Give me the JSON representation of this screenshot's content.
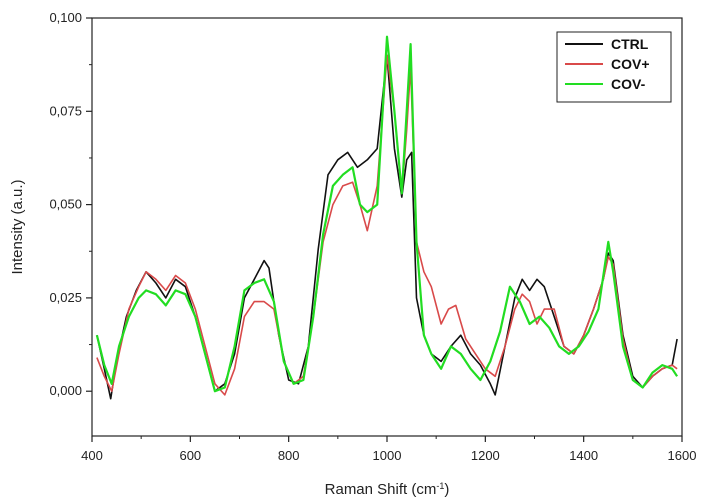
{
  "chart_data": {
    "type": "line",
    "title": "",
    "xlabel": "Raman Shift (cm",
    "xlabel_sup": "-1",
    "xlabel_close": ")",
    "ylabel": "Intensity (a.u.)",
    "xlim": [
      400,
      1600
    ],
    "ylim": [
      -0.012,
      0.1
    ],
    "xticks": [
      400,
      600,
      800,
      1000,
      1200,
      1400,
      1600
    ],
    "xtick_labels": [
      "400",
      "600",
      "800",
      "1000",
      "1200",
      "1400",
      "1600"
    ],
    "yticks": [
      0,
      0.025,
      0.05,
      0.075,
      0.1
    ],
    "ytick_labels": [
      "0,000",
      "0,025",
      "0,050",
      "0,075",
      "0,100"
    ],
    "grid": false,
    "legend_position": "top-right",
    "series": [
      {
        "name": "CTRL",
        "color": "#111111",
        "x": [
          410,
          425,
          438,
          450,
          470,
          490,
          510,
          530,
          550,
          570,
          590,
          610,
          630,
          650,
          670,
          690,
          710,
          730,
          750,
          760,
          780,
          800,
          820,
          840,
          860,
          880,
          900,
          920,
          940,
          960,
          980,
          1000,
          1015,
          1030,
          1040,
          1050,
          1060,
          1075,
          1090,
          1110,
          1130,
          1150,
          1170,
          1190,
          1210,
          1220,
          1240,
          1260,
          1275,
          1290,
          1305,
          1320,
          1340,
          1360,
          1380,
          1400,
          1420,
          1440,
          1450,
          1460,
          1480,
          1500,
          1520,
          1540,
          1560,
          1580,
          1590
        ],
        "y": [
          0.015,
          0.006,
          -0.002,
          0.008,
          0.02,
          0.027,
          0.032,
          0.029,
          0.025,
          0.03,
          0.028,
          0.02,
          0.01,
          0.0,
          0.002,
          0.01,
          0.025,
          0.03,
          0.035,
          0.033,
          0.015,
          0.003,
          0.002,
          0.012,
          0.038,
          0.058,
          0.062,
          0.064,
          0.06,
          0.062,
          0.065,
          0.09,
          0.065,
          0.052,
          0.062,
          0.064,
          0.025,
          0.015,
          0.01,
          0.008,
          0.012,
          0.015,
          0.01,
          0.007,
          0.002,
          -0.001,
          0.012,
          0.025,
          0.03,
          0.027,
          0.03,
          0.028,
          0.02,
          0.012,
          0.01,
          0.015,
          0.022,
          0.03,
          0.037,
          0.035,
          0.015,
          0.004,
          0.001,
          0.004,
          0.006,
          0.007,
          0.014
        ]
      },
      {
        "name": "COV+",
        "color": "#d94a4a",
        "x": [
          410,
          425,
          440,
          455,
          475,
          495,
          510,
          530,
          550,
          570,
          590,
          610,
          630,
          650,
          670,
          690,
          710,
          730,
          750,
          770,
          790,
          810,
          830,
          850,
          870,
          890,
          910,
          930,
          945,
          960,
          980,
          1000,
          1015,
          1030,
          1040,
          1048,
          1060,
          1075,
          1090,
          1110,
          1125,
          1140,
          1160,
          1180,
          1200,
          1220,
          1240,
          1260,
          1275,
          1290,
          1305,
          1320,
          1340,
          1360,
          1380,
          1400,
          1420,
          1440,
          1450,
          1460,
          1480,
          1500,
          1520,
          1540,
          1560,
          1580,
          1590
        ],
        "y": [
          0.009,
          0.004,
          0.0,
          0.01,
          0.022,
          0.028,
          0.032,
          0.03,
          0.027,
          0.031,
          0.029,
          0.022,
          0.012,
          0.002,
          -0.001,
          0.006,
          0.02,
          0.024,
          0.024,
          0.022,
          0.008,
          0.002,
          0.004,
          0.02,
          0.04,
          0.05,
          0.055,
          0.056,
          0.05,
          0.043,
          0.055,
          0.09,
          0.075,
          0.053,
          0.07,
          0.087,
          0.04,
          0.032,
          0.028,
          0.018,
          0.022,
          0.023,
          0.014,
          0.01,
          0.006,
          0.004,
          0.012,
          0.022,
          0.026,
          0.024,
          0.018,
          0.022,
          0.022,
          0.012,
          0.01,
          0.015,
          0.022,
          0.03,
          0.036,
          0.034,
          0.014,
          0.003,
          0.001,
          0.004,
          0.006,
          0.007,
          0.006
        ]
      },
      {
        "name": "COV-",
        "color": "#22dd22",
        "x": [
          410,
          425,
          440,
          455,
          475,
          495,
          510,
          530,
          550,
          570,
          590,
          610,
          630,
          650,
          670,
          690,
          710,
          730,
          750,
          770,
          790,
          810,
          830,
          850,
          870,
          890,
          910,
          930,
          945,
          960,
          980,
          1000,
          1015,
          1030,
          1040,
          1048,
          1060,
          1075,
          1090,
          1110,
          1130,
          1150,
          1170,
          1190,
          1210,
          1230,
          1250,
          1270,
          1290,
          1310,
          1330,
          1350,
          1370,
          1390,
          1410,
          1430,
          1450,
          1460,
          1480,
          1500,
          1520,
          1540,
          1560,
          1580,
          1590
        ],
        "y": [
          0.015,
          0.007,
          0.002,
          0.012,
          0.02,
          0.025,
          0.027,
          0.026,
          0.023,
          0.027,
          0.026,
          0.02,
          0.01,
          0.0,
          0.001,
          0.012,
          0.027,
          0.029,
          0.03,
          0.024,
          0.008,
          0.002,
          0.003,
          0.02,
          0.042,
          0.055,
          0.058,
          0.06,
          0.05,
          0.048,
          0.05,
          0.095,
          0.075,
          0.053,
          0.075,
          0.093,
          0.04,
          0.015,
          0.01,
          0.006,
          0.012,
          0.01,
          0.006,
          0.003,
          0.008,
          0.016,
          0.028,
          0.024,
          0.018,
          0.02,
          0.017,
          0.012,
          0.01,
          0.012,
          0.016,
          0.022,
          0.04,
          0.032,
          0.012,
          0.003,
          0.001,
          0.005,
          0.007,
          0.006,
          0.004
        ]
      }
    ]
  }
}
